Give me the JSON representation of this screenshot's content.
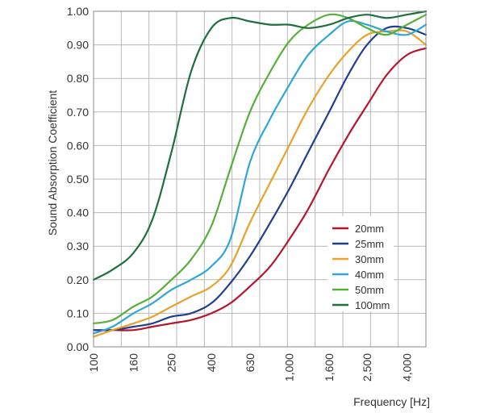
{
  "chart_data": {
    "type": "line",
    "title": "",
    "xlabel": "Frequency [Hz]",
    "ylabel": "Sound Absorption Coefficient",
    "x_scale": "log",
    "xlim": [
      100,
      5000
    ],
    "ylim": [
      0,
      1
    ],
    "grid": true,
    "legend_position": "right",
    "x_ticks": [
      {
        "value": 100,
        "label": "100"
      },
      {
        "value": 160,
        "label": "160"
      },
      {
        "value": 250,
        "label": "250"
      },
      {
        "value": 400,
        "label": "400"
      },
      {
        "value": 630,
        "label": "630"
      },
      {
        "value": 1000,
        "label": "1,000"
      },
      {
        "value": 1600,
        "label": "1,600"
      },
      {
        "value": 2500,
        "label": "2,500"
      },
      {
        "value": 4000,
        "label": "4,000"
      }
    ],
    "y_ticks": [
      "0.00",
      "0.10",
      "0.20",
      "0.30",
      "0.40",
      "0.50",
      "0.60",
      "0.70",
      "0.80",
      "0.90",
      "1.00"
    ],
    "series": [
      {
        "name": "20mm",
        "color": "#b5162b",
        "points": [
          [
            100,
            0.05
          ],
          [
            125,
            0.05
          ],
          [
            160,
            0.05
          ],
          [
            200,
            0.06
          ],
          [
            250,
            0.07
          ],
          [
            315,
            0.08
          ],
          [
            400,
            0.1
          ],
          [
            500,
            0.13
          ],
          [
            630,
            0.18
          ],
          [
            800,
            0.24
          ],
          [
            1000,
            0.32
          ],
          [
            1250,
            0.41
          ],
          [
            1600,
            0.53
          ],
          [
            2000,
            0.63
          ],
          [
            2500,
            0.72
          ],
          [
            3150,
            0.81
          ],
          [
            4000,
            0.87
          ],
          [
            5000,
            0.89
          ]
        ]
      },
      {
        "name": "25mm",
        "color": "#1f3f8f",
        "points": [
          [
            100,
            0.05
          ],
          [
            125,
            0.05
          ],
          [
            160,
            0.06
          ],
          [
            200,
            0.07
          ],
          [
            250,
            0.09
          ],
          [
            315,
            0.1
          ],
          [
            400,
            0.13
          ],
          [
            500,
            0.19
          ],
          [
            630,
            0.27
          ],
          [
            800,
            0.37
          ],
          [
            1000,
            0.47
          ],
          [
            1250,
            0.58
          ],
          [
            1600,
            0.7
          ],
          [
            2000,
            0.81
          ],
          [
            2500,
            0.9
          ],
          [
            3150,
            0.95
          ],
          [
            4000,
            0.95
          ],
          [
            5000,
            0.93
          ]
        ]
      },
      {
        "name": "30mm",
        "color": "#e8a22a",
        "points": [
          [
            100,
            0.03
          ],
          [
            125,
            0.05
          ],
          [
            160,
            0.07
          ],
          [
            200,
            0.09
          ],
          [
            250,
            0.12
          ],
          [
            315,
            0.15
          ],
          [
            400,
            0.18
          ],
          [
            500,
            0.24
          ],
          [
            630,
            0.37
          ],
          [
            800,
            0.49
          ],
          [
            1000,
            0.6
          ],
          [
            1250,
            0.71
          ],
          [
            1600,
            0.81
          ],
          [
            2000,
            0.88
          ],
          [
            2500,
            0.93
          ],
          [
            3150,
            0.94
          ],
          [
            4000,
            0.94
          ],
          [
            5000,
            0.9
          ]
        ]
      },
      {
        "name": "40mm",
        "color": "#2ea7d6",
        "points": [
          [
            100,
            0.04
          ],
          [
            125,
            0.06
          ],
          [
            160,
            0.1
          ],
          [
            200,
            0.13
          ],
          [
            250,
            0.17
          ],
          [
            315,
            0.2
          ],
          [
            400,
            0.24
          ],
          [
            500,
            0.32
          ],
          [
            630,
            0.55
          ],
          [
            800,
            0.68
          ],
          [
            1000,
            0.78
          ],
          [
            1250,
            0.87
          ],
          [
            1600,
            0.93
          ],
          [
            2000,
            0.97
          ],
          [
            2500,
            0.96
          ],
          [
            3150,
            0.94
          ],
          [
            4000,
            0.93
          ],
          [
            5000,
            0.96
          ]
        ]
      },
      {
        "name": "50mm",
        "color": "#55b03a",
        "points": [
          [
            100,
            0.07
          ],
          [
            125,
            0.08
          ],
          [
            160,
            0.12
          ],
          [
            200,
            0.15
          ],
          [
            250,
            0.2
          ],
          [
            315,
            0.26
          ],
          [
            400,
            0.36
          ],
          [
            500,
            0.53
          ],
          [
            630,
            0.7
          ],
          [
            800,
            0.82
          ],
          [
            1000,
            0.91
          ],
          [
            1250,
            0.96
          ],
          [
            1600,
            0.99
          ],
          [
            2000,
            0.98
          ],
          [
            2500,
            0.95
          ],
          [
            3150,
            0.93
          ],
          [
            4000,
            0.96
          ],
          [
            5000,
            0.99
          ]
        ]
      },
      {
        "name": "100mm",
        "color": "#1e6f3e",
        "points": [
          [
            100,
            0.2
          ],
          [
            125,
            0.23
          ],
          [
            160,
            0.28
          ],
          [
            200,
            0.38
          ],
          [
            250,
            0.58
          ],
          [
            315,
            0.82
          ],
          [
            400,
            0.95
          ],
          [
            500,
            0.98
          ],
          [
            630,
            0.97
          ],
          [
            800,
            0.96
          ],
          [
            1000,
            0.96
          ],
          [
            1250,
            0.95
          ],
          [
            1600,
            0.96
          ],
          [
            2000,
            0.98
          ],
          [
            2500,
            0.99
          ],
          [
            3150,
            0.98
          ],
          [
            4000,
            0.99
          ],
          [
            5000,
            1.0
          ]
        ]
      }
    ]
  }
}
